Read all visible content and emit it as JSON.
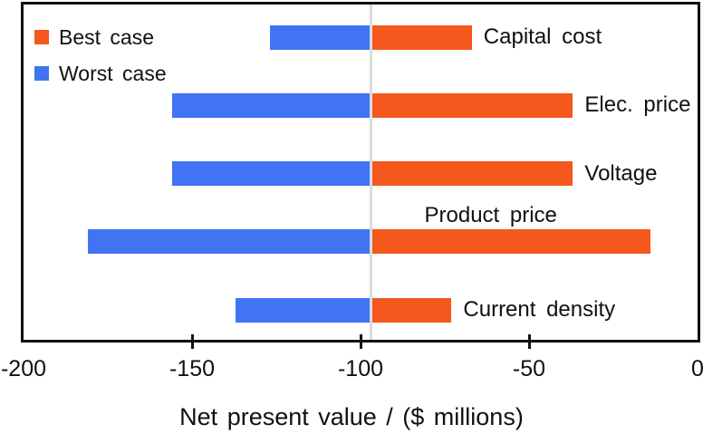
{
  "chart_data": {
    "type": "bar",
    "subtype": "tornado",
    "orientation": "horizontal",
    "title": "",
    "xlabel": "Net present value / ($ millions)",
    "xlim": [
      -200,
      0
    ],
    "xticks": [
      -200,
      -150,
      -100,
      -50,
      0
    ],
    "xticks_with_marks": [
      -150,
      -100,
      -50
    ],
    "baseline_value": -97,
    "grid": "off",
    "legend": {
      "position": "top-left",
      "items": [
        {
          "label": "Best case",
          "color": "#f4581c"
        },
        {
          "label": "Worst case",
          "color": "#4074f2"
        }
      ]
    },
    "categories": [
      "Capital cost",
      "Elec. price",
      "Voltage",
      "Product price",
      "Current density"
    ],
    "category_label_position": [
      "right",
      "right",
      "right",
      "above",
      "right"
    ],
    "series": [
      {
        "name": "Best case",
        "color": "#f4581c",
        "values": [
          -67,
          -37,
          -37,
          -14,
          -73
        ]
      },
      {
        "name": "Worst case",
        "color": "#4074f2",
        "values": [
          -127,
          -156,
          -156,
          -181,
          -137
        ]
      }
    ],
    "colors": {
      "baseline_line": "#d9dcdd",
      "axis": "#111111",
      "text": "#111111",
      "background": "#ffffff"
    }
  }
}
